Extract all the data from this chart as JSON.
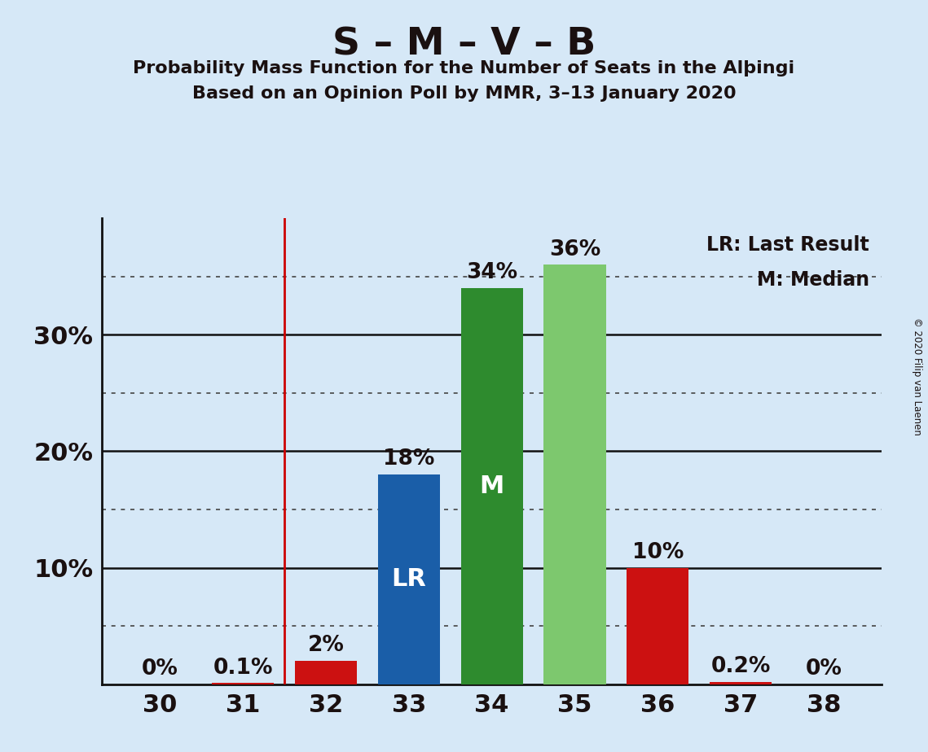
{
  "title_main": "S – M – V – B",
  "title_sub1": "Probability Mass Function for the Number of Seats in the Alþingi",
  "title_sub2": "Based on an Opinion Poll by MMR, 3–13 January 2020",
  "copyright": "© 2020 Filip van Laenen",
  "seats": [
    30,
    31,
    32,
    33,
    34,
    35,
    36,
    37,
    38
  ],
  "probabilities": [
    0.0,
    0.1,
    2.0,
    18.0,
    34.0,
    36.0,
    10.0,
    0.2,
    0.0
  ],
  "bar_colors": [
    "#cc1111",
    "#cc1111",
    "#cc1111",
    "#1a5ea8",
    "#2e8b2e",
    "#7dc86e",
    "#cc1111",
    "#cc1111",
    "#cc1111"
  ],
  "lr_line_x": 31.5,
  "background_color": "#d6e8f7",
  "label_lr": "LR",
  "label_m": "M",
  "legend_lr": "LR: Last Result",
  "legend_m": "M: Median",
  "solid_grid_lines": [
    10,
    20,
    30
  ],
  "dotted_grid_lines": [
    5,
    15,
    25,
    35
  ],
  "ytick_positions": [
    10,
    20,
    30
  ],
  "ytick_labels": [
    "10%",
    "20%",
    "30%"
  ],
  "ylim_max": 40,
  "xlim": [
    29.3,
    38.7
  ],
  "bar_width": 0.75
}
